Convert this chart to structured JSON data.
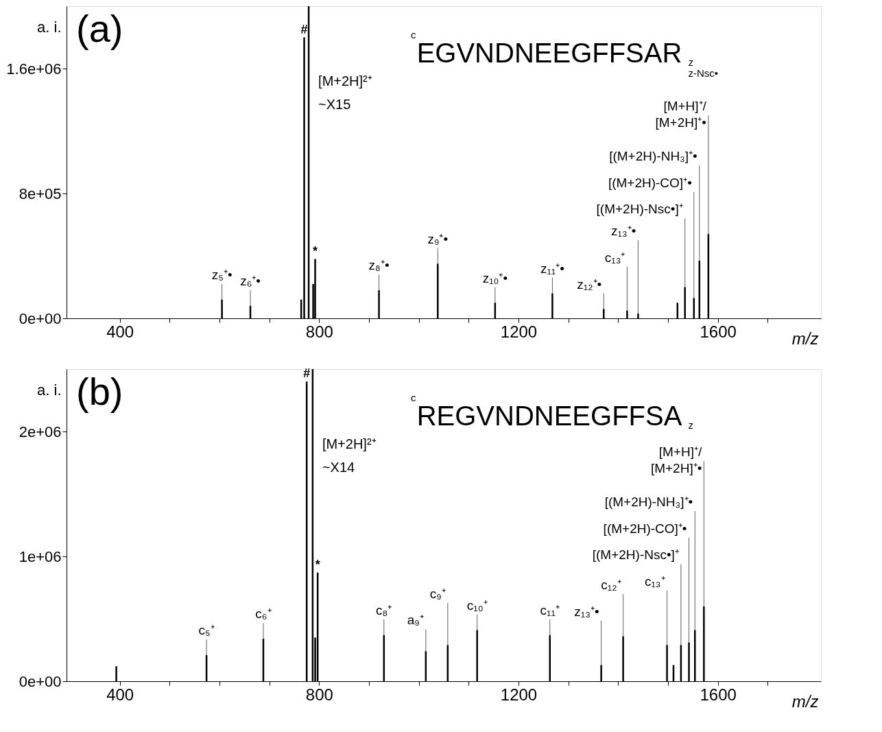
{
  "chart_data": [
    {
      "type": "bar",
      "title": "(a)",
      "subtitle": "EGVNDNEEGFFSAR",
      "xlabel": "m/z",
      "ylabel": "a. i.",
      "color": "#000000",
      "grid": false,
      "xlim": [
        300,
        1800
      ],
      "xticks": [
        400,
        {
          "value": 500,
          "label": null
        },
        {
          "value": 600,
          "label": null
        },
        {
          "value": 700,
          "label": null
        },
        800,
        {
          "value": 900,
          "label": null
        },
        {
          "value": 1000,
          "label": null
        },
        {
          "value": 1100,
          "label": null
        },
        1200,
        {
          "value": 1300,
          "label": null
        },
        {
          "value": 1400,
          "label": null
        },
        {
          "value": 1500,
          "label": null
        },
        1600,
        {
          "value": 1700,
          "label": null
        }
      ],
      "ylim": [
        0,
        2000000
      ],
      "yticks": [
        {
          "value": 0,
          "label": "0e+00"
        },
        {
          "value": 800000,
          "label": "8e+05"
        },
        {
          "value": 1600000,
          "label": "1.6e+06"
        }
      ],
      "x": [
        605,
        662,
        764,
        770,
        779,
        788,
        792,
        920,
        1038,
        1153,
        1268,
        1371,
        1418,
        1440,
        1519,
        1534,
        1552,
        1563,
        1581
      ],
      "values": [
        120000,
        80000,
        120000,
        1800000,
        2000000,
        220000,
        380000,
        180000,
        350000,
        100000,
        160000,
        60000,
        50000,
        30000,
        100000,
        200000,
        130000,
        370000,
        540000
      ],
      "annotations": [
        {
          "text": "z₅⁺•",
          "x": 605,
          "y": 120000
        },
        {
          "text": "z₆⁺•",
          "x": 662,
          "y": 80000
        },
        {
          "text": "#",
          "x": 770,
          "y": 1800000
        },
        {
          "text": "*",
          "x": 792,
          "y": 380000
        },
        {
          "text": "z₈⁺•",
          "x": 920,
          "y": 180000
        },
        {
          "text": "z₉⁺•",
          "x": 1038,
          "y": 350000
        },
        {
          "text": "z₁₀⁺•",
          "x": 1153,
          "y": 100000
        },
        {
          "text": "z₁₁⁺•",
          "x": 1268,
          "y": 160000
        },
        {
          "text": "z₁₂⁺•",
          "x": 1371,
          "y": 60000
        },
        {
          "text": "c₁₃⁺",
          "x": 1418,
          "y": 50000
        },
        {
          "text": "z₁₃⁺•",
          "x": 1440,
          "y": 30000
        },
        {
          "text": "[(M+2H)-Nsc•]⁺",
          "x": 1534,
          "y": 200000
        },
        {
          "text": "[(M+2H)-CO]⁺•",
          "x": 1552,
          "y": 130000
        },
        {
          "text": "[(M+2H)-NH₃]⁺•",
          "x": 1563,
          "y": 370000
        },
        {
          "text": "[M+H]⁺/\n[M+2H]⁺•",
          "x": 1581,
          "y": 540000
        },
        "[M+2H]²⁺\n~X15",
        "c",
        "z",
        "z-Nsc•"
      ]
    },
    {
      "type": "bar",
      "title": "(b)",
      "subtitle": "REGVNDNEEGFFSA",
      "xlabel": "m/z",
      "ylabel": "a. i.",
      "color": "#000000",
      "grid": false,
      "xlim": [
        300,
        1800
      ],
      "xticks": [
        400,
        {
          "value": 500,
          "label": null
        },
        {
          "value": 600,
          "label": null
        },
        {
          "value": 700,
          "label": null
        },
        800,
        {
          "value": 900,
          "label": null
        },
        {
          "value": 1000,
          "label": null
        },
        {
          "value": 1100,
          "label": null
        },
        1200,
        {
          "value": 1300,
          "label": null
        },
        {
          "value": 1400,
          "label": null
        },
        {
          "value": 1500,
          "label": null
        },
        1600,
        {
          "value": 1700,
          "label": null
        }
      ],
      "ylim": [
        0,
        2500000
      ],
      "yticks": [
        {
          "value": 0,
          "label": "0e+00"
        },
        {
          "value": 1000000,
          "label": "1e+06"
        },
        {
          "value": 2000000,
          "label": "2e+06"
        }
      ],
      "x": [
        393,
        574,
        688,
        775,
        787,
        792,
        797,
        930,
        1014,
        1058,
        1117,
        1263,
        1366,
        1410,
        1498,
        1511,
        1526,
        1542,
        1554,
        1572
      ],
      "values": [
        120000,
        210000,
        340000,
        2400000,
        2500000,
        350000,
        870000,
        370000,
        240000,
        290000,
        410000,
        370000,
        130000,
        360000,
        290000,
        130000,
        290000,
        310000,
        410000,
        600000
      ],
      "annotations": [
        {
          "text": "c₅⁺",
          "x": 574,
          "y": 210000
        },
        {
          "text": "c₆⁺",
          "x": 688,
          "y": 340000
        },
        {
          "text": "#",
          "x": 775,
          "y": 2400000
        },
        {
          "text": "*",
          "x": 797,
          "y": 870000
        },
        {
          "text": "c₈⁺",
          "x": 930,
          "y": 370000
        },
        {
          "text": "a₉⁺",
          "x": 1014,
          "y": 240000
        },
        {
          "text": "c₉⁺",
          "x": 1058,
          "y": 290000
        },
        {
          "text": "c₁₀⁺",
          "x": 1117,
          "y": 410000
        },
        {
          "text": "c₁₁⁺",
          "x": 1263,
          "y": 370000
        },
        {
          "text": "z₁₃⁺•",
          "x": 1366,
          "y": 130000
        },
        {
          "text": "c₁₂⁺",
          "x": 1410,
          "y": 360000
        },
        {
          "text": "c₁₃⁺",
          "x": 1498,
          "y": 290000
        },
        {
          "text": "[(M+2H)-Nsc•]⁺",
          "x": 1526,
          "y": 290000
        },
        {
          "text": "[(M+2H)-CO]⁺•",
          "x": 1542,
          "y": 310000
        },
        {
          "text": "[(M+2H)-NH₃]⁺•",
          "x": 1554,
          "y": 410000
        },
        {
          "text": "[M+H]⁺/\n[M+2H]⁺•",
          "x": 1572,
          "y": 600000
        },
        "[M+2H]²⁺\n~X14",
        "c",
        "z"
      ]
    }
  ]
}
